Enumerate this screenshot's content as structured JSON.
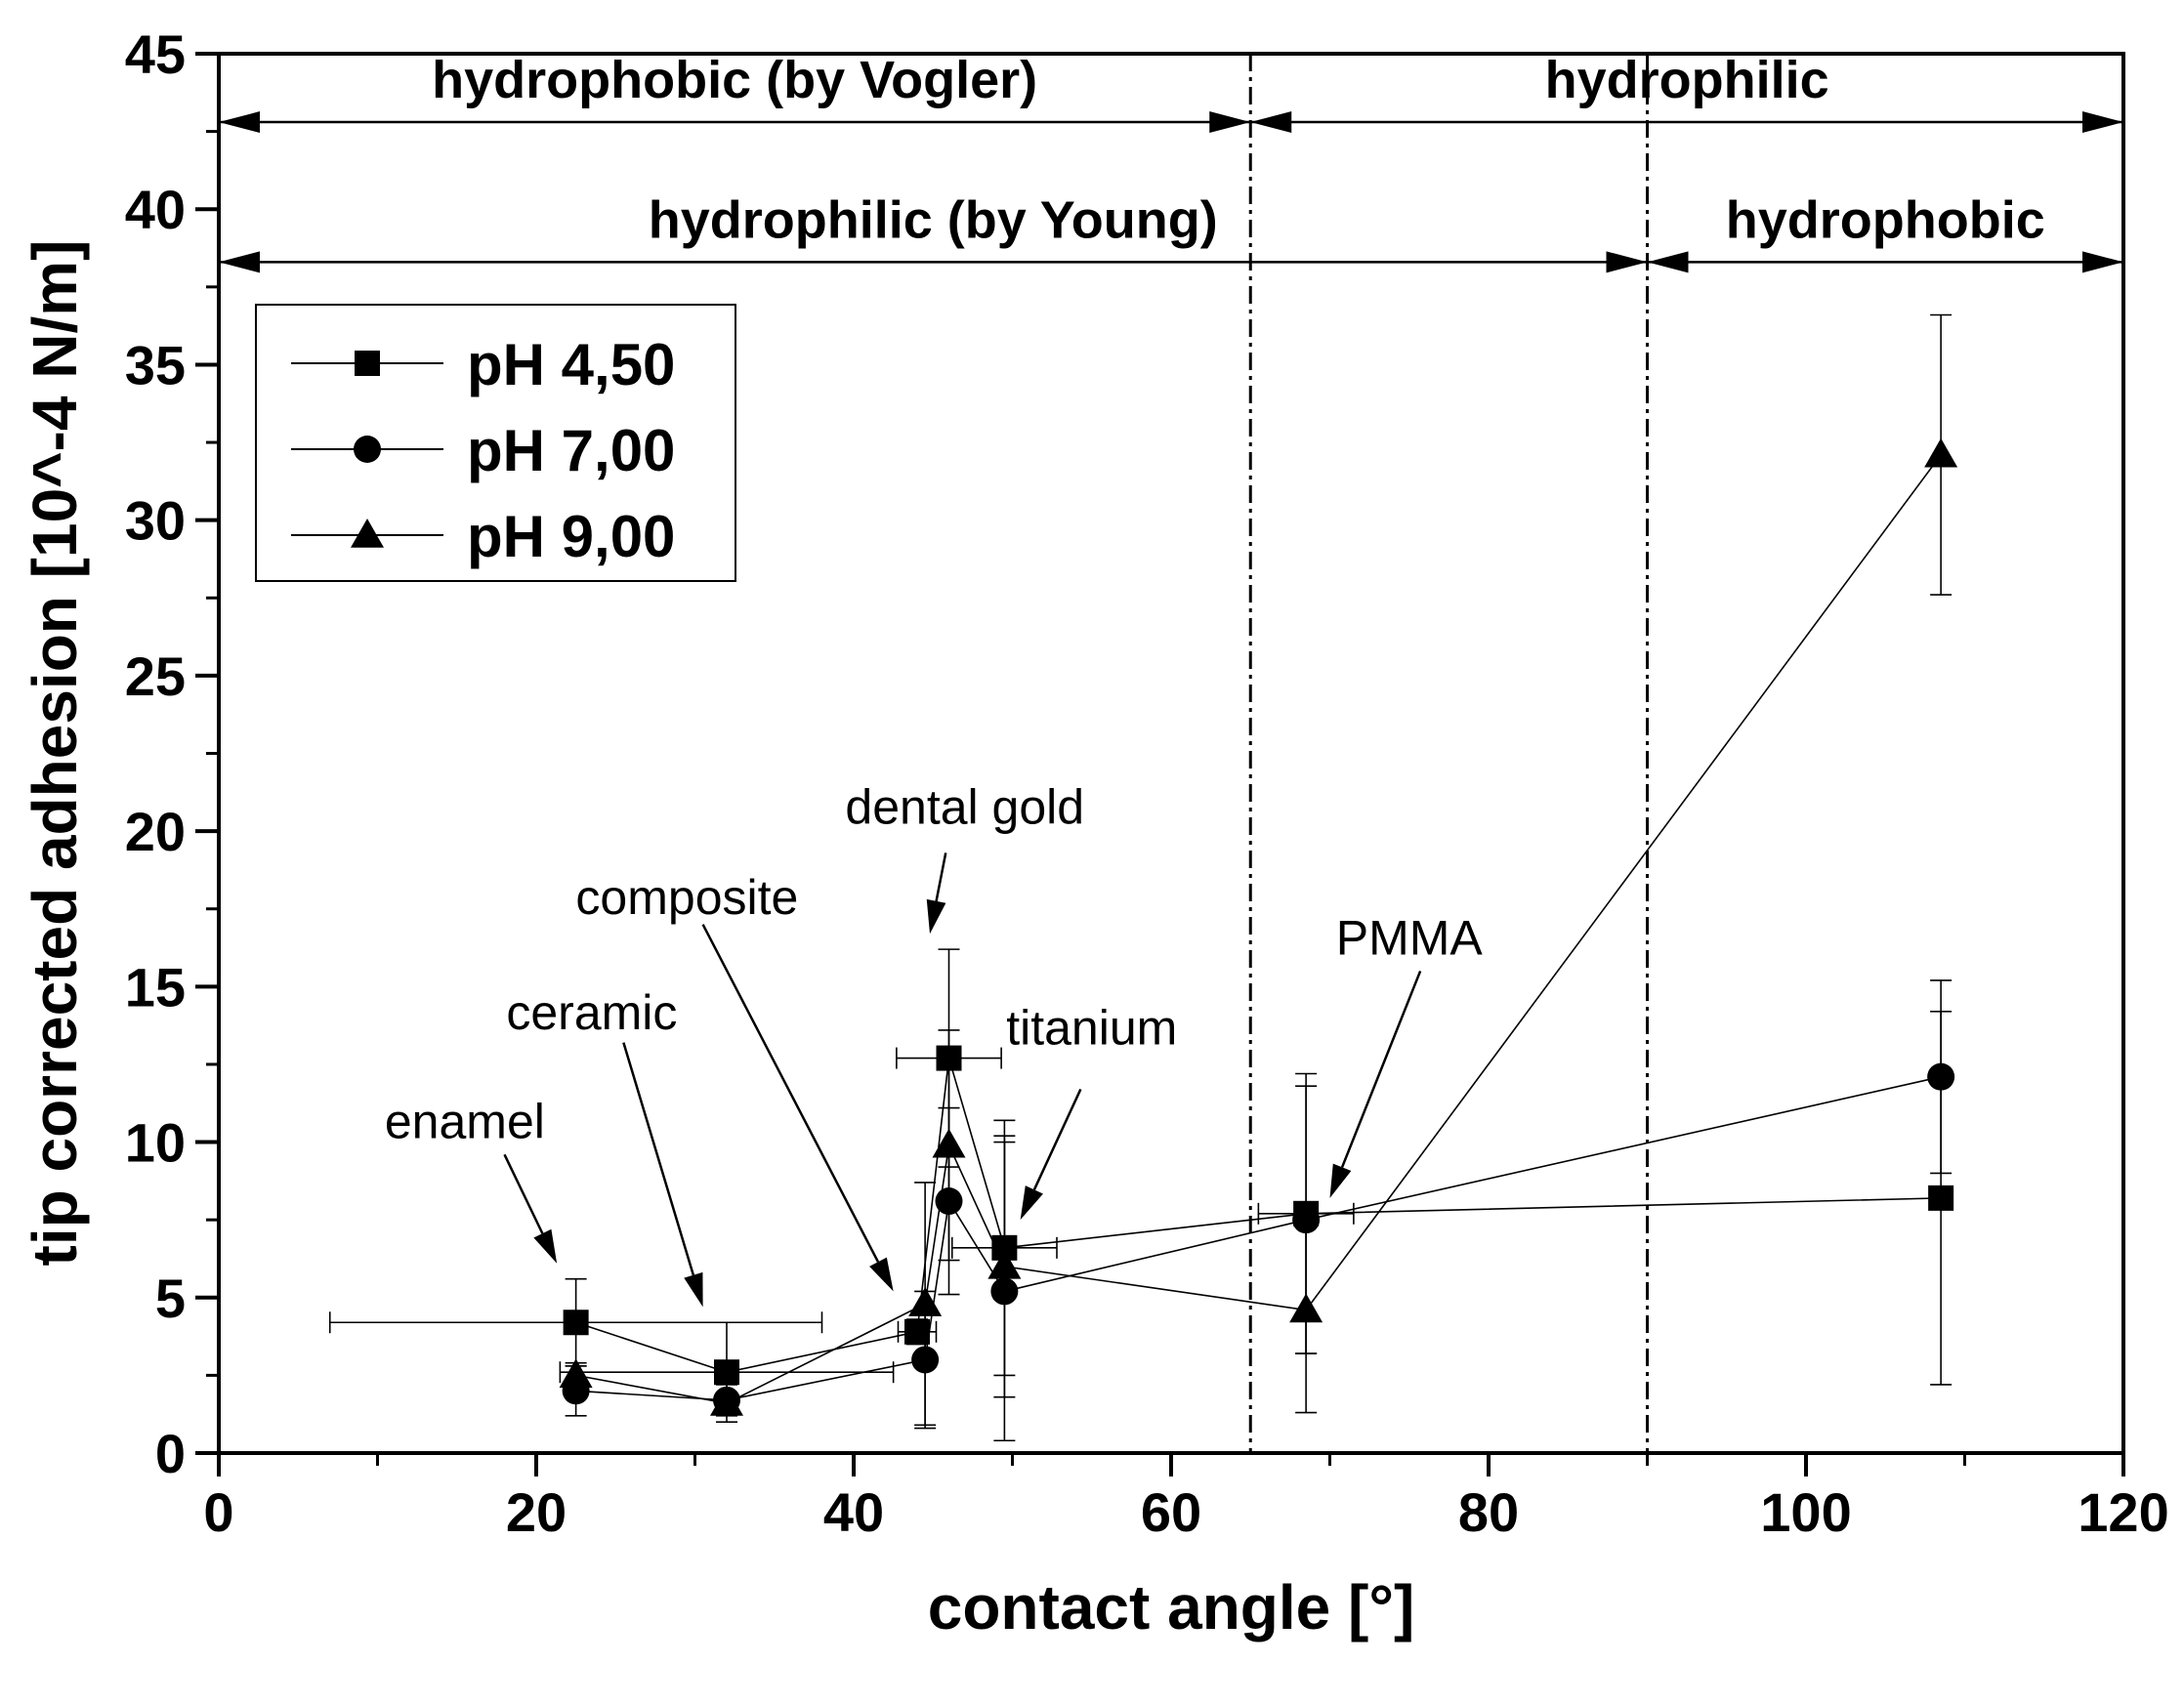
{
  "chart_data": {
    "type": "scatter",
    "title": "",
    "xlabel": "contact angle [°]",
    "ylabel": "tip corrected adhesion [10^-4 N/m]",
    "xlim": [
      0,
      120
    ],
    "ylim": [
      0,
      45
    ],
    "xticks": [
      0,
      20,
      40,
      60,
      80,
      100,
      120
    ],
    "yticks": [
      0,
      5,
      10,
      15,
      20,
      25,
      30,
      35,
      40,
      45
    ],
    "grid": false,
    "legend_position": "top-left",
    "series": [
      {
        "name": "pH 4,50",
        "marker": "square",
        "points": [
          {
            "x": 22.5,
            "y": 4.2,
            "yerr": 1.4,
            "xerr": 15.5
          },
          {
            "x": 32,
            "y": 2.6,
            "yerr": 1.6,
            "xerr": 10.5
          },
          {
            "x": 44,
            "y": 3.9,
            "yerr": 0.4,
            "xerr": 1.2
          },
          {
            "x": 46,
            "y": 12.7,
            "yerr": 3.5,
            "xerr": 3.3
          },
          {
            "x": 49.5,
            "y": 6.6,
            "yerr": 4.1,
            "xerr": 3.3
          },
          {
            "x": 68.5,
            "y": 7.7,
            "yerr": 4.5,
            "xerr": 3.0
          },
          {
            "x": 108.5,
            "y": 8.2,
            "yerr": 6.0,
            "xerr": 0
          }
        ]
      },
      {
        "name": "pH 7,00",
        "marker": "circle",
        "points": [
          {
            "x": 22.5,
            "y": 2.0,
            "yerr": 0.8,
            "xerr": 0
          },
          {
            "x": 32,
            "y": 1.7,
            "yerr": 0.5,
            "xerr": 0
          },
          {
            "x": 44.5,
            "y": 3.0,
            "yerr": 2.2,
            "xerr": 0
          },
          {
            "x": 46,
            "y": 8.1,
            "yerr": 3.0,
            "xerr": 0
          },
          {
            "x": 49.5,
            "y": 5.2,
            "yerr": 4.8,
            "xerr": 0
          },
          {
            "x": 68.5,
            "y": 7.5,
            "yerr": 4.3,
            "xerr": 0
          },
          {
            "x": 108.5,
            "y": 12.1,
            "yerr": 3.1,
            "xerr": 0
          }
        ]
      },
      {
        "name": "pH 9,00",
        "marker": "triangle",
        "points": [
          {
            "x": 22.5,
            "y": 2.5,
            "yerr": 0.4,
            "xerr": 0
          },
          {
            "x": 32,
            "y": 1.6,
            "yerr": 0.3,
            "xerr": 0
          },
          {
            "x": 44.5,
            "y": 4.8,
            "yerr": 3.9,
            "xerr": 0
          },
          {
            "x": 46,
            "y": 9.9,
            "yerr": 3.7,
            "xerr": 0
          },
          {
            "x": 49.5,
            "y": 6.0,
            "yerr": 4.2,
            "xerr": 0
          },
          {
            "x": 68.5,
            "y": 4.6,
            "yerr": 3.3,
            "xerr": 0
          },
          {
            "x": 108.5,
            "y": 32.1,
            "yerr": 4.5,
            "xerr": 0
          }
        ]
      }
    ],
    "vertical_lines": [
      65,
      90
    ],
    "regions": [
      {
        "label": "hydrophobic (by Vogler)",
        "x_from": 0,
        "x_to": 65,
        "y": 42.8
      },
      {
        "label": "hydrophilic",
        "x_from": 65,
        "x_to": 120,
        "y": 42.8
      },
      {
        "label": "hydrophilic (by Young)",
        "x_from": 0,
        "x_to": 90,
        "y": 38.3
      },
      {
        "label": "hydrophobic",
        "x_from": 90,
        "x_to": 120,
        "y": 38.3
      }
    ],
    "annotations": [
      {
        "text": "enamel",
        "label_x": 15.5,
        "label_y": 10.7,
        "arrow_from": [
          18,
          9.6
        ],
        "arrow_to": [
          21.3,
          6.1
        ]
      },
      {
        "text": "ceramic",
        "label_x": 23.5,
        "label_y": 14.2,
        "arrow_from": [
          25.5,
          13.2
        ],
        "arrow_to": [
          30.5,
          4.7
        ]
      },
      {
        "text": "composite",
        "label_x": 29.5,
        "label_y": 17.9,
        "arrow_from": [
          30.5,
          17.0
        ],
        "arrow_to": [
          42.5,
          5.2
        ]
      },
      {
        "text": "dental gold",
        "label_x": 47,
        "label_y": 20.8,
        "arrow_from": [
          45.8,
          19.3
        ],
        "arrow_to": [
          44.8,
          16.7
        ]
      },
      {
        "text": "titanium",
        "label_x": 55,
        "label_y": 13.7,
        "arrow_from": [
          54.3,
          11.7
        ],
        "arrow_to": [
          50.5,
          7.5
        ]
      },
      {
        "text": "PMMA",
        "label_x": 75,
        "label_y": 16.6,
        "arrow_from": [
          75.7,
          15.5
        ],
        "arrow_to": [
          70,
          8.2
        ]
      }
    ]
  }
}
